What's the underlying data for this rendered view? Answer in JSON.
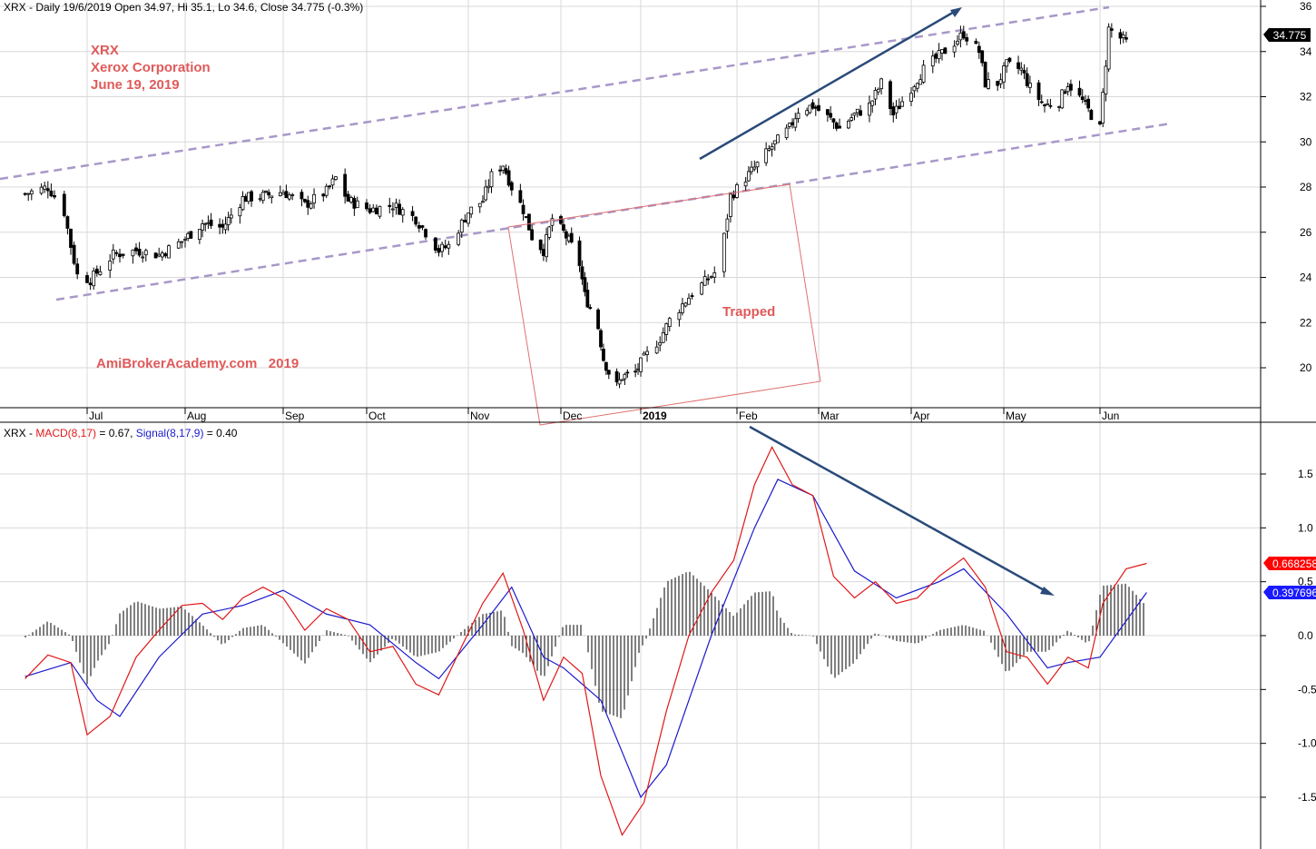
{
  "colors": {
    "background": "#ffffff",
    "candle": "#000000",
    "macd": "#e01818",
    "signal": "#1a1acc",
    "histogram": "#000000",
    "channel": "#a898c8",
    "trendArrow": "#2a4a7a",
    "trapBox": "#e07070",
    "annotation": "#e05a5a",
    "grid": "#d8d8d8",
    "macdBadge": "#ff0000",
    "signalBadge": "#1a1aff"
  },
  "header": {
    "price": "XRX - Daily 19/6/2019 Open 34.97, Hi 35.1, Lo 34.6, Close 34.775 (-0.3%)",
    "macd_prefix": "XRX - ",
    "macd_label": "MACD(8,17)",
    "macd_value": " = 0.67, ",
    "signal_label": "Signal(8,17,9)",
    "signal_value": " = 0.40"
  },
  "annotations": {
    "ticker": "XRX",
    "company": "Xerox Corporation",
    "date": "June 19, 2019",
    "website": "AmiBrokerAcademy.com   2019",
    "trapped": "Trapped"
  },
  "badges": {
    "close": "34.775",
    "macd": "0.668258",
    "signal": "0.397696"
  },
  "chart_data": [
    {
      "type": "candlestick",
      "title": "",
      "yaxis": {
        "range": [
          18.1,
          36.2
        ],
        "ticks": [
          {
            "v": 20,
            "label": "20"
          },
          {
            "v": 22,
            "label": "22"
          },
          {
            "v": 24,
            "label": "24"
          },
          {
            "v": 26,
            "label": "26"
          },
          {
            "v": 28,
            "label": "28"
          },
          {
            "v": 30,
            "label": "30"
          },
          {
            "v": 32,
            "label": "32"
          },
          {
            "v": 34,
            "label": "34"
          },
          {
            "v": 36,
            "label": "36"
          }
        ]
      },
      "xaxis": {
        "months": [
          {
            "label": "Jul",
            "date": "2018-07-02",
            "bold": false
          },
          {
            "label": "Aug",
            "date": "2018-08-01",
            "bold": false
          },
          {
            "label": "Sep",
            "date": "2018-09-04",
            "bold": false
          },
          {
            "label": "Oct",
            "date": "2018-10-01",
            "bold": false
          },
          {
            "label": "Nov",
            "date": "2018-11-01",
            "bold": false
          },
          {
            "label": "Dec",
            "date": "2018-12-03",
            "bold": false
          },
          {
            "label": "2019",
            "date": "2019-01-02",
            "bold": true
          },
          {
            "label": "Feb",
            "date": "2019-02-01",
            "bold": false
          },
          {
            "label": "Mar",
            "date": "2019-03-01",
            "bold": false
          },
          {
            "label": "Apr",
            "date": "2019-04-01",
            "bold": false
          },
          {
            "label": "May",
            "date": "2019-05-01",
            "bold": false
          },
          {
            "label": "Jun",
            "date": "2019-06-03",
            "bold": false
          }
        ]
      },
      "closes": [
        {
          "date": "2018-06-13",
          "close": 27.7
        },
        {
          "date": "2018-06-20",
          "close": 28.0
        },
        {
          "date": "2018-06-22",
          "close": 27.6
        },
        {
          "date": "2018-06-25",
          "close": 26.9
        },
        {
          "date": "2018-06-27",
          "close": 25.4
        },
        {
          "date": "2018-06-29",
          "close": 24.1
        },
        {
          "date": "2018-07-03",
          "close": 23.9
        },
        {
          "date": "2018-07-10",
          "close": 25.0
        },
        {
          "date": "2018-07-17",
          "close": 25.2
        },
        {
          "date": "2018-07-24",
          "close": 25.0
        },
        {
          "date": "2018-07-31",
          "close": 25.6
        },
        {
          "date": "2018-08-07",
          "close": 26.4
        },
        {
          "date": "2018-08-14",
          "close": 26.2
        },
        {
          "date": "2018-08-21",
          "close": 27.5
        },
        {
          "date": "2018-08-28",
          "close": 27.6
        },
        {
          "date": "2018-09-04",
          "close": 27.8
        },
        {
          "date": "2018-09-11",
          "close": 27.2
        },
        {
          "date": "2018-09-18",
          "close": 27.8
        },
        {
          "date": "2018-09-21",
          "close": 28.4
        },
        {
          "date": "2018-09-25",
          "close": 27.4
        },
        {
          "date": "2018-10-02",
          "close": 27.0
        },
        {
          "date": "2018-10-09",
          "close": 27.2
        },
        {
          "date": "2018-10-16",
          "close": 26.6
        },
        {
          "date": "2018-10-23",
          "close": 25.2
        },
        {
          "date": "2018-10-26",
          "close": 25.4
        },
        {
          "date": "2018-11-01",
          "close": 26.9
        },
        {
          "date": "2018-11-06",
          "close": 27.4
        },
        {
          "date": "2018-11-09",
          "close": 28.5
        },
        {
          "date": "2018-11-13",
          "close": 29.0
        },
        {
          "date": "2018-11-16",
          "close": 28.0
        },
        {
          "date": "2018-11-20",
          "close": 27.0
        },
        {
          "date": "2018-11-23",
          "close": 25.8
        },
        {
          "date": "2018-11-27",
          "close": 25.2
        },
        {
          "date": "2018-11-30",
          "close": 26.6
        },
        {
          "date": "2018-12-04",
          "close": 26.0
        },
        {
          "date": "2018-12-07",
          "close": 25.4
        },
        {
          "date": "2018-12-10",
          "close": 24.6
        },
        {
          "date": "2018-12-12",
          "close": 23.2
        },
        {
          "date": "2018-12-17",
          "close": 21.8
        },
        {
          "date": "2018-12-19",
          "close": 20.4
        },
        {
          "date": "2018-12-21",
          "close": 19.8
        },
        {
          "date": "2018-12-24",
          "close": 19.2
        },
        {
          "date": "2018-12-26",
          "close": 19.6
        },
        {
          "date": "2018-12-31",
          "close": 19.8
        },
        {
          "date": "2019-01-03",
          "close": 20.4
        },
        {
          "date": "2019-01-08",
          "close": 21.3
        },
        {
          "date": "2019-01-11",
          "close": 22.1
        },
        {
          "date": "2019-01-15",
          "close": 22.8
        },
        {
          "date": "2019-01-18",
          "close": 23.3
        },
        {
          "date": "2019-01-22",
          "close": 23.8
        },
        {
          "date": "2019-01-25",
          "close": 24.2
        },
        {
          "date": "2019-01-28",
          "close": 25.8
        },
        {
          "date": "2019-01-30",
          "close": 27.6
        },
        {
          "date": "2019-02-04",
          "close": 28.4
        },
        {
          "date": "2019-02-08",
          "close": 29.0
        },
        {
          "date": "2019-02-13",
          "close": 29.8
        },
        {
          "date": "2019-02-19",
          "close": 30.6
        },
        {
          "date": "2019-02-22",
          "close": 31.4
        },
        {
          "date": "2019-02-27",
          "close": 31.6
        },
        {
          "date": "2019-03-05",
          "close": 31.0
        },
        {
          "date": "2019-03-08",
          "close": 30.6
        },
        {
          "date": "2019-03-13",
          "close": 31.2
        },
        {
          "date": "2019-03-18",
          "close": 31.6
        },
        {
          "date": "2019-03-22",
          "close": 32.6
        },
        {
          "date": "2019-03-26",
          "close": 31.2
        },
        {
          "date": "2019-04-01",
          "close": 32.4
        },
        {
          "date": "2019-04-05",
          "close": 33.2
        },
        {
          "date": "2019-04-10",
          "close": 33.8
        },
        {
          "date": "2019-04-15",
          "close": 34.4
        },
        {
          "date": "2019-04-18",
          "close": 34.8
        },
        {
          "date": "2019-04-23",
          "close": 34.0
        },
        {
          "date": "2019-04-25",
          "close": 32.6
        },
        {
          "date": "2019-04-29",
          "close": 32.6
        },
        {
          "date": "2019-05-02",
          "close": 33.4
        },
        {
          "date": "2019-05-07",
          "close": 33.2
        },
        {
          "date": "2019-05-10",
          "close": 32.4
        },
        {
          "date": "2019-05-15",
          "close": 31.6
        },
        {
          "date": "2019-05-20",
          "close": 31.8
        },
        {
          "date": "2019-05-23",
          "close": 32.6
        },
        {
          "date": "2019-05-28",
          "close": 31.8
        },
        {
          "date": "2019-05-30",
          "close": 31.4
        },
        {
          "date": "2019-06-03",
          "close": 30.6
        },
        {
          "date": "2019-06-06",
          "close": 35.0
        },
        {
          "date": "2019-06-12",
          "close": 34.4
        },
        {
          "date": "2019-06-19",
          "close": 34.775
        }
      ],
      "last_candle": {
        "date": "2019-06-19",
        "open": 34.97,
        "high": 35.1,
        "low": 34.6,
        "close": 34.775
      }
    },
    {
      "type": "line",
      "title": "",
      "yaxis": {
        "range": [
          -1.95,
          1.85
        ],
        "ticks": [
          {
            "v": 1.5,
            "label": "1.5"
          },
          {
            "v": 1.0,
            "label": "1.0"
          },
          {
            "v": 0.5,
            "label": "0.5"
          },
          {
            "v": 0.0,
            "label": "0.0"
          },
          {
            "v": -0.5,
            "label": "-0.5"
          },
          {
            "v": -1.0,
            "label": "-1.0"
          },
          {
            "v": -1.5,
            "label": "-1.5"
          }
        ]
      },
      "series": [
        {
          "name": "MACD(8,17)",
          "points": [
            {
              "date": "2018-06-13",
              "v": -0.4
            },
            {
              "date": "2018-06-20",
              "v": -0.18
            },
            {
              "date": "2018-06-27",
              "v": -0.25
            },
            {
              "date": "2018-07-02",
              "v": -0.92
            },
            {
              "date": "2018-07-09",
              "v": -0.75
            },
            {
              "date": "2018-07-17",
              "v": -0.2
            },
            {
              "date": "2018-07-24",
              "v": 0.05
            },
            {
              "date": "2018-07-31",
              "v": 0.28
            },
            {
              "date": "2018-08-07",
              "v": 0.3
            },
            {
              "date": "2018-08-14",
              "v": 0.15
            },
            {
              "date": "2018-08-21",
              "v": 0.35
            },
            {
              "date": "2018-08-28",
              "v": 0.45
            },
            {
              "date": "2018-09-04",
              "v": 0.35
            },
            {
              "date": "2018-09-11",
              "v": 0.05
            },
            {
              "date": "2018-09-18",
              "v": 0.25
            },
            {
              "date": "2018-09-25",
              "v": 0.15
            },
            {
              "date": "2018-10-02",
              "v": -0.15
            },
            {
              "date": "2018-10-09",
              "v": -0.1
            },
            {
              "date": "2018-10-16",
              "v": -0.45
            },
            {
              "date": "2018-10-23",
              "v": -0.55
            },
            {
              "date": "2018-10-30",
              "v": -0.1
            },
            {
              "date": "2018-11-06",
              "v": 0.3
            },
            {
              "date": "2018-11-13",
              "v": 0.58
            },
            {
              "date": "2018-11-20",
              "v": 0.05
            },
            {
              "date": "2018-11-27",
              "v": -0.6
            },
            {
              "date": "2018-12-04",
              "v": -0.2
            },
            {
              "date": "2018-12-11",
              "v": -0.35
            },
            {
              "date": "2018-12-18",
              "v": -1.3
            },
            {
              "date": "2018-12-26",
              "v": -1.85
            },
            {
              "date": "2019-01-03",
              "v": -1.55
            },
            {
              "date": "2019-01-10",
              "v": -0.7
            },
            {
              "date": "2019-01-17",
              "v": 0.0
            },
            {
              "date": "2019-01-24",
              "v": 0.4
            },
            {
              "date": "2019-01-31",
              "v": 0.7
            },
            {
              "date": "2019-02-07",
              "v": 1.4
            },
            {
              "date": "2019-02-13",
              "v": 1.75
            },
            {
              "date": "2019-02-20",
              "v": 1.4
            },
            {
              "date": "2019-02-27",
              "v": 1.3
            },
            {
              "date": "2019-03-06",
              "v": 0.55
            },
            {
              "date": "2019-03-13",
              "v": 0.35
            },
            {
              "date": "2019-03-20",
              "v": 0.5
            },
            {
              "date": "2019-03-27",
              "v": 0.3
            },
            {
              "date": "2019-04-03",
              "v": 0.35
            },
            {
              "date": "2019-04-10",
              "v": 0.55
            },
            {
              "date": "2019-04-18",
              "v": 0.72
            },
            {
              "date": "2019-04-25",
              "v": 0.45
            },
            {
              "date": "2019-05-02",
              "v": -0.15
            },
            {
              "date": "2019-05-09",
              "v": -0.2
            },
            {
              "date": "2019-05-16",
              "v": -0.45
            },
            {
              "date": "2019-05-23",
              "v": -0.2
            },
            {
              "date": "2019-05-30",
              "v": -0.3
            },
            {
              "date": "2019-06-04",
              "v": 0.3
            },
            {
              "date": "2019-06-12",
              "v": 0.62
            },
            {
              "date": "2019-06-19",
              "v": 0.67
            }
          ]
        },
        {
          "name": "Signal(8,17,9)",
          "points": [
            {
              "date": "2018-06-13",
              "v": -0.38
            },
            {
              "date": "2018-06-27",
              "v": -0.25
            },
            {
              "date": "2018-07-05",
              "v": -0.6
            },
            {
              "date": "2018-07-12",
              "v": -0.75
            },
            {
              "date": "2018-07-24",
              "v": -0.2
            },
            {
              "date": "2018-08-07",
              "v": 0.2
            },
            {
              "date": "2018-08-21",
              "v": 0.28
            },
            {
              "date": "2018-09-04",
              "v": 0.42
            },
            {
              "date": "2018-09-18",
              "v": 0.2
            },
            {
              "date": "2018-10-02",
              "v": 0.1
            },
            {
              "date": "2018-10-16",
              "v": -0.25
            },
            {
              "date": "2018-10-23",
              "v": -0.4
            },
            {
              "date": "2018-11-06",
              "v": 0.1
            },
            {
              "date": "2018-11-16",
              "v": 0.45
            },
            {
              "date": "2018-11-27",
              "v": -0.2
            },
            {
              "date": "2018-12-04",
              "v": -0.3
            },
            {
              "date": "2018-12-18",
              "v": -0.6
            },
            {
              "date": "2019-01-02",
              "v": -1.5
            },
            {
              "date": "2019-01-10",
              "v": -1.2
            },
            {
              "date": "2019-01-24",
              "v": 0.0
            },
            {
              "date": "2019-02-07",
              "v": 1.0
            },
            {
              "date": "2019-02-15",
              "v": 1.45
            },
            {
              "date": "2019-02-27",
              "v": 1.3
            },
            {
              "date": "2019-03-13",
              "v": 0.6
            },
            {
              "date": "2019-03-27",
              "v": 0.35
            },
            {
              "date": "2019-04-10",
              "v": 0.5
            },
            {
              "date": "2019-04-18",
              "v": 0.62
            },
            {
              "date": "2019-05-02",
              "v": 0.2
            },
            {
              "date": "2019-05-16",
              "v": -0.3
            },
            {
              "date": "2019-05-23",
              "v": -0.25
            },
            {
              "date": "2019-06-03",
              "v": -0.2
            },
            {
              "date": "2019-06-19",
              "v": 0.4
            }
          ]
        }
      ]
    }
  ]
}
